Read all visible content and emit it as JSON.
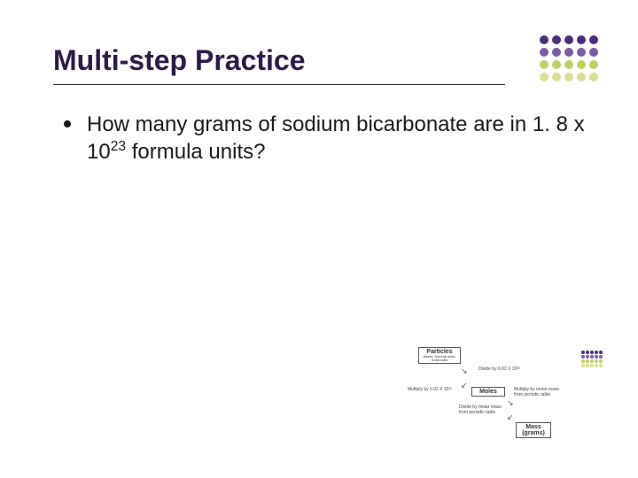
{
  "title": "Multi-step Practice",
  "bullet_text_pre": "How many grams of sodium bicarbonate are in 1. 8 x 10",
  "bullet_exp": "23",
  "bullet_text_post": " formula units?",
  "dot_colors_top": [
    "#4a2e7a",
    "#4a2e7a",
    "#4a2e7a",
    "#4a2e7a",
    "#4a2e7a",
    "#7a5ca8",
    "#7a5ca8",
    "#7a5ca8",
    "#7a5ca8",
    "#7a5ca8",
    "#c0d060",
    "#c0d060",
    "#c0d060",
    "#c0d060",
    "#c0d060",
    "#d8e090",
    "#d8e090",
    "#d8e090",
    "#d8e090",
    "#d8e090"
  ],
  "dot_colors_small": [
    "#4a2e7a",
    "#4a2e7a",
    "#4a2e7a",
    "#4a2e7a",
    "#4a2e7a",
    "#7a5ca8",
    "#7a5ca8",
    "#7a5ca8",
    "#7a5ca8",
    "#7a5ca8",
    "#c0d060",
    "#c0d060",
    "#c0d060",
    "#c0d060",
    "#c0d060",
    "#d8e090",
    "#d8e090",
    "#d8e090",
    "#d8e090",
    "#d8e090"
  ],
  "diagram": {
    "box1": "Particles",
    "box1_sub": "atoms, formula units, molecules",
    "box2": "Moles",
    "box3": "Mass (grams)",
    "label1": "Divide by 6.02 X 10²³",
    "label2": "Multiply by 6.02 X 10²³",
    "label3": "Multiply by molar mass from periodic table",
    "label4": "Divide by molar mass from periodic table"
  }
}
